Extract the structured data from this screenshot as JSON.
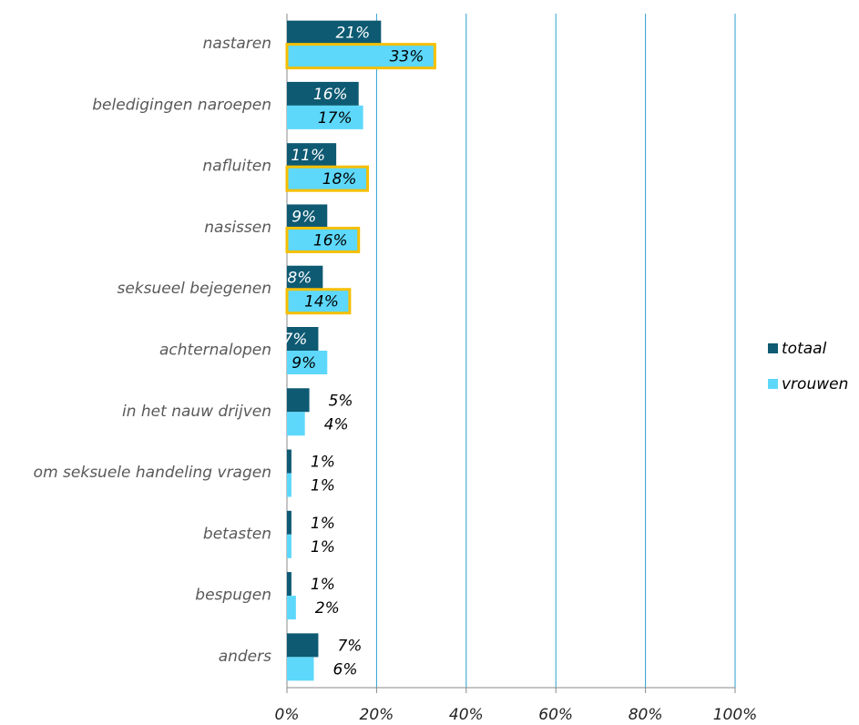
{
  "chart_data": {
    "type": "bar",
    "orientation": "horizontal",
    "categories": [
      "nastaren",
      "beledigingen naroepen",
      "nafluiten",
      "nasissen",
      "seksueel bejegenen",
      "achternalopen",
      "in het nauw drijven",
      "om seksuele handeling vragen",
      "betasten",
      "bespugen",
      "anders"
    ],
    "series": [
      {
        "name": "totaal",
        "color": "#0e5a73",
        "values": [
          21,
          16,
          11,
          9,
          8,
          7,
          5,
          1,
          1,
          1,
          7
        ],
        "value_labels": [
          "21%",
          "16%",
          "11%",
          "9%",
          "8%",
          "7%",
          "5%",
          "1%",
          "1%",
          "1%",
          "7%"
        ]
      },
      {
        "name": "vrouwen",
        "color": "#5dd8fb",
        "values": [
          33,
          17,
          18,
          16,
          14,
          9,
          4,
          1,
          1,
          2,
          6
        ],
        "value_labels": [
          "33%",
          "17%",
          "18%",
          "16%",
          "14%",
          "9%",
          "4%",
          "1%",
          "1%",
          "2%",
          "6%"
        ],
        "outline": [
          true,
          false,
          true,
          true,
          true,
          false,
          false,
          false,
          false,
          false,
          false
        ],
        "outline_color": "#f5bf00"
      }
    ],
    "xlim": [
      0,
      100
    ],
    "xticks": [
      {
        "value": 0,
        "label": "0%"
      },
      {
        "value": 20,
        "label": "20%"
      },
      {
        "value": 40,
        "label": "40%"
      },
      {
        "value": 60,
        "label": "60%"
      },
      {
        "value": 80,
        "label": "80%"
      },
      {
        "value": 100,
        "label": "100%"
      }
    ],
    "grid": true,
    "grid_color": "#2a9fd0",
    "legend": "right"
  }
}
